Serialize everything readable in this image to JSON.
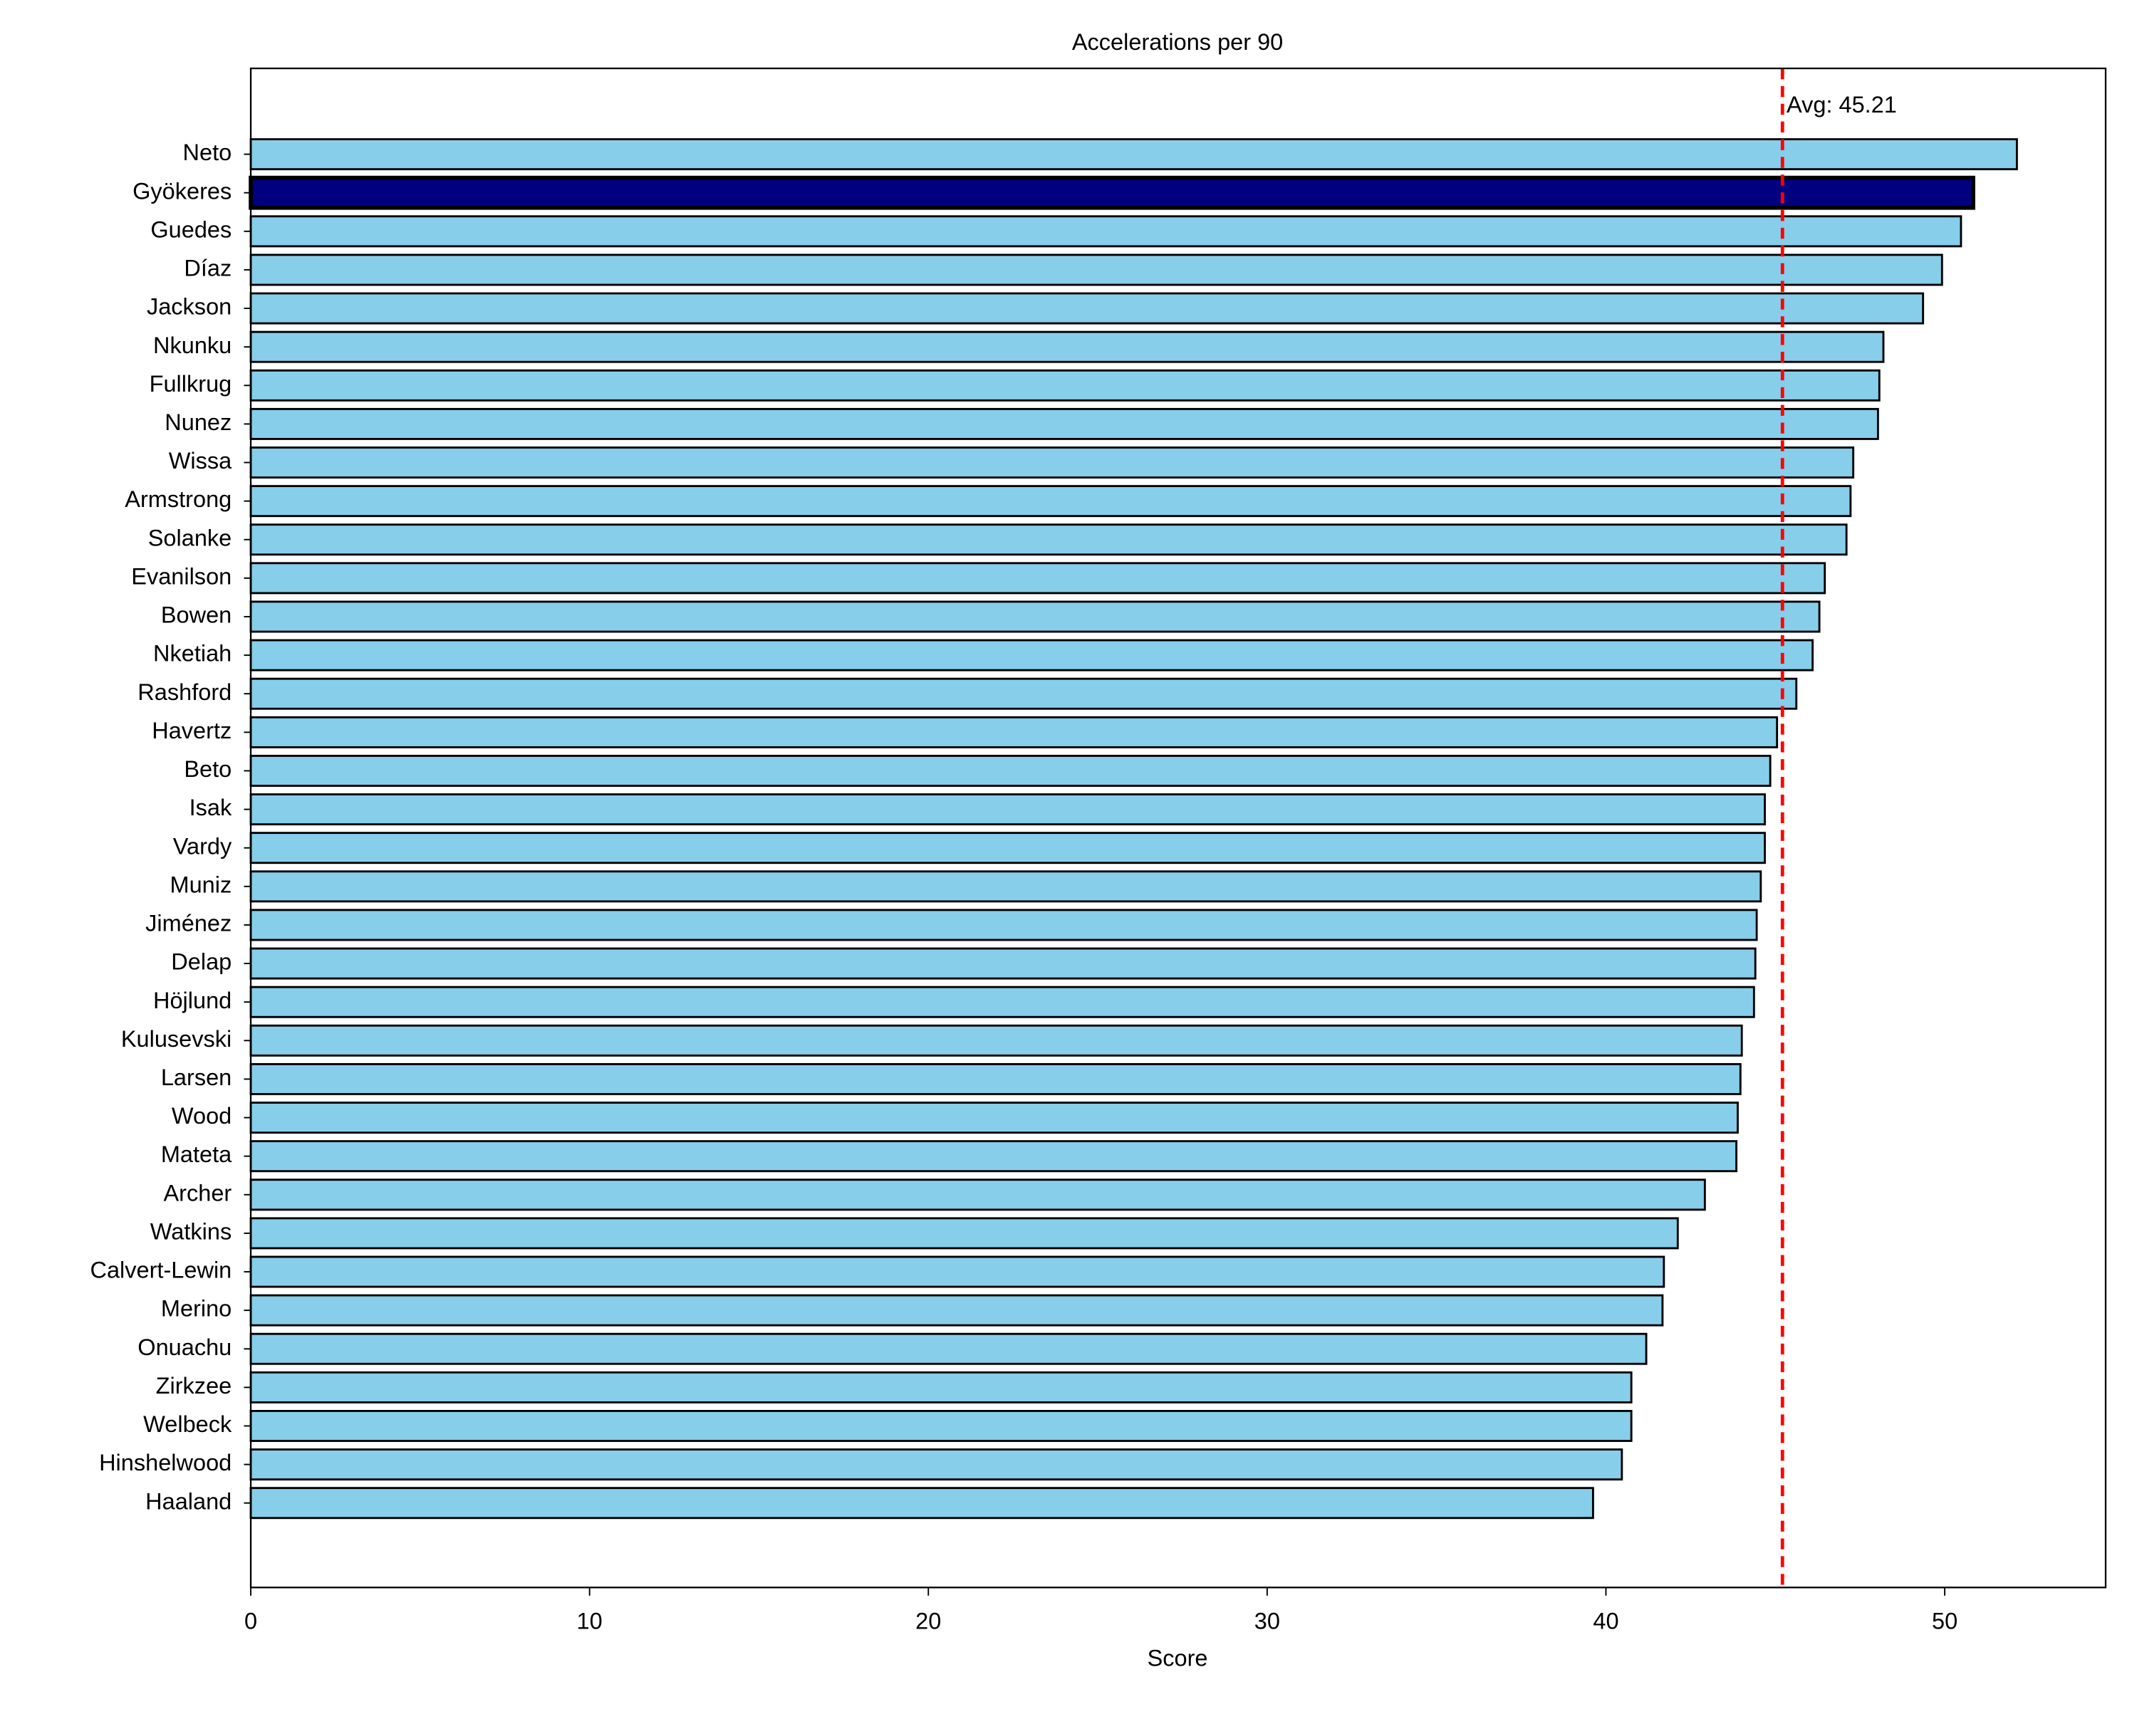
{
  "chart_data": {
    "type": "barh",
    "title": "Accelerations per 90",
    "xlabel": "Score",
    "categories": [
      "Neto",
      "Gyökeres",
      "Guedes",
      "Díaz",
      "Jackson",
      "Nkunku",
      "Fullkrug",
      "Nunez",
      "Wissa",
      "Armstrong",
      "Solanke",
      "Evanilson",
      "Bowen",
      "Nketiah",
      "Rashford",
      "Havertz",
      "Beto",
      "Isak",
      "Vardy",
      "Muniz",
      "Jiménez",
      "Delap",
      "Höjlund",
      "Kulusevski",
      "Larsen",
      "Wood",
      "Mateta",
      "Archer",
      "Watkins",
      "Calvert-Lewin",
      "Merino",
      "Onuachu",
      "Zirkzee",
      "Welbeck",
      "Hinshelwood",
      "Haaland"
    ],
    "values": [
      52.13,
      50.84,
      50.48,
      49.92,
      49.36,
      48.19,
      48.07,
      48.03,
      47.3,
      47.22,
      47.1,
      46.46,
      46.3,
      46.1,
      45.62,
      45.05,
      44.85,
      44.69,
      44.69,
      44.57,
      44.45,
      44.41,
      44.37,
      44.01,
      43.97,
      43.89,
      43.85,
      42.92,
      42.12,
      41.71,
      41.67,
      41.19,
      40.75,
      40.75,
      40.47,
      39.62
    ],
    "colors": [
      "#87ceeb",
      "#000080",
      "#87ceeb",
      "#87ceeb",
      "#87ceeb",
      "#87ceeb",
      "#87ceeb",
      "#87ceeb",
      "#87ceeb",
      "#87ceeb",
      "#87ceeb",
      "#87ceeb",
      "#87ceeb",
      "#87ceeb",
      "#87ceeb",
      "#87ceeb",
      "#87ceeb",
      "#87ceeb",
      "#87ceeb",
      "#87ceeb",
      "#87ceeb",
      "#87ceeb",
      "#87ceeb",
      "#87ceeb",
      "#87ceeb",
      "#87ceeb",
      "#87ceeb",
      "#87ceeb",
      "#87ceeb",
      "#87ceeb",
      "#87ceeb",
      "#87ceeb",
      "#87ceeb",
      "#87ceeb",
      "#87ceeb",
      "#87ceeb"
    ],
    "xlim": [
      0,
      54.75
    ],
    "xticks": [
      0,
      10,
      20,
      30,
      40,
      50
    ],
    "reference_line": {
      "value": 45.21,
      "label": "Avg: 45.21",
      "color": "#ff0000"
    }
  }
}
